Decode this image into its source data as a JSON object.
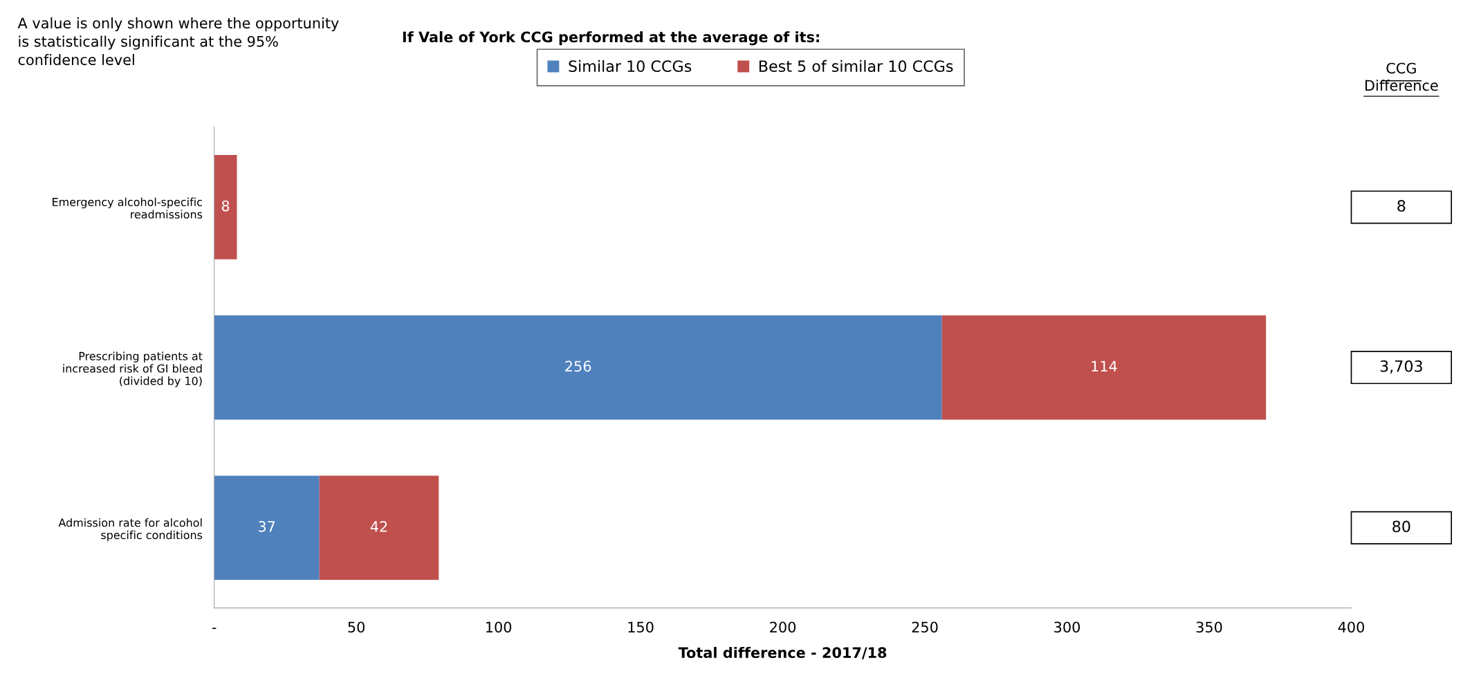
{
  "chart_data": {
    "type": "bar",
    "orientation": "horizontal",
    "stacked": true,
    "title": "If Vale of York CCG performed at the average of its:",
    "xlabel": "Total difference - 2017/18",
    "categories": [
      "Emergency alcohol-specific readmissions",
      "Prescribing patients at increased risk of GI bleed (divided by 10)",
      "Admission rate for alcohol specific conditions"
    ],
    "series": [
      {
        "name": "Similar 10 CCGs",
        "color": "#4f81bd",
        "values": [
          null,
          256,
          37
        ]
      },
      {
        "name": "Best 5 of similar 10 CCGs",
        "color": "#c0504d",
        "values": [
          8,
          114,
          42
        ]
      }
    ],
    "xlim": [
      0,
      400
    ],
    "xticks": [
      {
        "value": 0,
        "label": "-"
      },
      50,
      100,
      150,
      200,
      250,
      300,
      350,
      400
    ],
    "data_labels": true,
    "annotations": [
      "A value is only shown where the opportunity is statistically significant at the 95% confidence level",
      "CCG Difference",
      "8",
      "3,703",
      "80"
    ],
    "legend": "top",
    "grid": false
  }
}
